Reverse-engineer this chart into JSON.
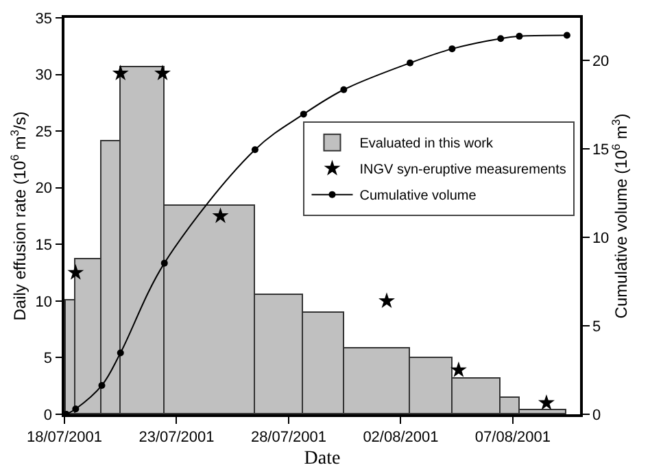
{
  "chart_data": {
    "type": "histogram",
    "xlabel": "Date",
    "ylabel": "Daily effusion rate (10$^{6}$ m$^{3}$/s)",
    "y2label": "Cumulative volume (10$^{6}$ m$^{3}$)",
    "xlim": [
      "2001-07-18",
      "2001-08-10"
    ],
    "xticks": [
      {
        "value": "2001-07-18",
        "label": "18/07/2001"
      },
      {
        "value": "2001-07-23",
        "label": "23/07/2001"
      },
      {
        "value": "2001-07-28",
        "label": "28/07/2001"
      },
      {
        "value": "2001-08-02",
        "label": "02/08/2001"
      },
      {
        "value": "2001-08-07",
        "label": "07/08/2001"
      }
    ],
    "ylim": [
      0,
      35
    ],
    "yticks": [
      0,
      5,
      10,
      15,
      20,
      25,
      30,
      35
    ],
    "y2lim": [
      0,
      22.4
    ],
    "y2ticks": [
      0,
      5,
      10,
      15,
      20
    ],
    "legend": "right",
    "series": [
      {
        "name": "Evaluated in this work",
        "color": "#c0c0c0",
        "bins": [
          "2001-07-18T02:00",
          "2001-07-18T12:00",
          "2001-07-19T16:00",
          "2001-07-20T12:00",
          "2001-07-22T11:00",
          "2001-07-26T12:00",
          "2001-07-28T16:00",
          "2001-07-30T11:00",
          "2001-08-02T10:00",
          "2001-08-04T07:00",
          "2001-08-06T11:00",
          "2001-08-07T07:00",
          "2001-08-09T10:00"
        ],
        "values": [
          10.1,
          13.7,
          24.1,
          30.7,
          18.4,
          10.5,
          9.0,
          5.8,
          5.0,
          3.1,
          1.5,
          0.4
        ]
      },
      {
        "type": "scatter",
        "name": "INGV syn-eruptive measurements",
        "color": "#000000",
        "marker": "star",
        "x": [
          "2001-07-18T12:00",
          "2001-07-20T12:00",
          "2001-07-22T09:00",
          "2001-07-24T23:00",
          "2001-08-01T09:00",
          "2001-08-04T14:00",
          "2001-08-08T12:00"
        ],
        "values": [
          12.5,
          30.1,
          30.1,
          17.5,
          10.0,
          3.9,
          1.0
        ]
      },
      {
        "type": "line",
        "name": "Cumulative volume",
        "color": "#000000",
        "marker": "circle",
        "axis": "y2",
        "x": [
          "2001-07-18T02:00",
          "2001-07-18T12:00",
          "2001-07-19T16:00",
          "2001-07-20T12:00",
          "2001-07-22T11:00",
          "2001-07-26T12:00",
          "2001-07-28T16:00",
          "2001-07-30T11:00",
          "2001-08-02T10:00",
          "2001-08-04T07:00",
          "2001-08-06T11:00",
          "2001-08-07T07:00",
          "2001-08-09T10:00"
        ],
        "values": [
          0,
          0.3,
          1.63,
          3.47,
          8.54,
          14.95,
          16.96,
          18.34,
          19.85,
          20.65,
          21.23,
          21.36,
          21.41
        ]
      }
    ]
  }
}
